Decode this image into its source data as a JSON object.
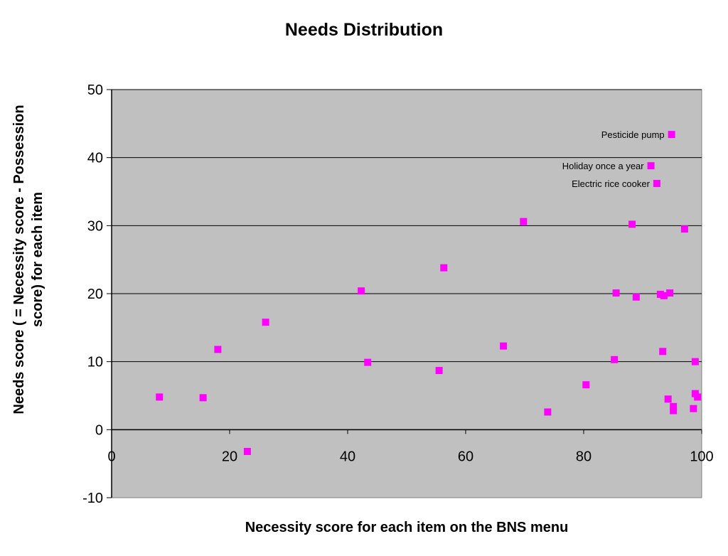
{
  "chart_data": {
    "type": "scatter",
    "title": "Needs Distribution",
    "xlabel": "Necessity score for each item on the BNS menu",
    "ylabel": "Needs score ( = Necessity score - Possession score) for each item",
    "xlim": [
      0,
      100
    ],
    "ylim": [
      -10,
      50
    ],
    "xticks": [
      "0",
      "20",
      "40",
      "60",
      "80",
      "100"
    ],
    "yticks": [
      "-10",
      "0",
      "10",
      "20",
      "30",
      "40",
      "50"
    ],
    "grid": "horizontal",
    "legend": "none",
    "colors": {
      "plot_bg": "#c0c0c0",
      "marker": "#ff00ff",
      "grid": "#000000"
    },
    "points": [
      {
        "x": 8.1,
        "y": 4.8
      },
      {
        "x": 15.5,
        "y": 4.7
      },
      {
        "x": 18.0,
        "y": 11.8
      },
      {
        "x": 23.0,
        "y": -3.2
      },
      {
        "x": 26.1,
        "y": 15.8
      },
      {
        "x": 42.3,
        "y": 20.4
      },
      {
        "x": 43.4,
        "y": 9.9
      },
      {
        "x": 55.5,
        "y": 8.7
      },
      {
        "x": 56.3,
        "y": 23.8
      },
      {
        "x": 66.4,
        "y": 12.3
      },
      {
        "x": 69.8,
        "y": 30.6
      },
      {
        "x": 73.9,
        "y": 2.6
      },
      {
        "x": 80.4,
        "y": 6.6
      },
      {
        "x": 85.2,
        "y": 10.3
      },
      {
        "x": 85.5,
        "y": 20.1
      },
      {
        "x": 88.2,
        "y": 30.2
      },
      {
        "x": 88.9,
        "y": 19.5
      },
      {
        "x": 93.0,
        "y": 19.9
      },
      {
        "x": 93.6,
        "y": 19.7
      },
      {
        "x": 94.6,
        "y": 20.1
      },
      {
        "x": 93.4,
        "y": 11.5
      },
      {
        "x": 94.3,
        "y": 4.5
      },
      {
        "x": 95.2,
        "y": 3.4
      },
      {
        "x": 95.2,
        "y": 2.8
      },
      {
        "x": 98.6,
        "y": 3.1
      },
      {
        "x": 98.9,
        "y": 10.0
      },
      {
        "x": 98.9,
        "y": 5.3
      },
      {
        "x": 99.3,
        "y": 4.8
      },
      {
        "x": 97.1,
        "y": 29.5
      },
      {
        "x": 94.9,
        "y": 43.4,
        "label": "Pesticide pump"
      },
      {
        "x": 91.4,
        "y": 38.8,
        "label": "Holiday once a year"
      },
      {
        "x": 92.4,
        "y": 36.2,
        "label": "Electric rice cooker"
      }
    ]
  }
}
